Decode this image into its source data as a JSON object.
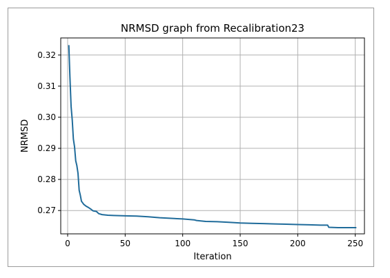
{
  "chart_data": {
    "type": "line",
    "title": "NRMSD graph from Recalibration23",
    "xlabel": "Iteration",
    "ylabel": "NRMSD",
    "xlim": [
      -6,
      258
    ],
    "ylim": [
      0.2625,
      0.3255
    ],
    "grid": true,
    "x_ticks": [
      0,
      50,
      100,
      150,
      200,
      250
    ],
    "y_ticks": [
      0.27,
      0.28,
      0.29,
      0.3,
      0.31,
      0.32
    ],
    "x_tick_labels": [
      "0",
      "50",
      "100",
      "150",
      "200",
      "250"
    ],
    "y_tick_labels": [
      "0.27",
      "0.28",
      "0.29",
      "0.30",
      "0.31",
      "0.32"
    ],
    "series": [
      {
        "color": "#1f6b9a",
        "x": [
          1,
          2,
          3,
          4,
          5,
          6,
          7,
          8,
          9,
          10,
          11,
          12,
          14,
          16,
          18,
          20,
          22,
          25,
          27,
          30,
          35,
          40,
          50,
          60,
          70,
          80,
          90,
          100,
          110,
          112,
          120,
          130,
          140,
          150,
          160,
          170,
          180,
          190,
          200,
          210,
          220,
          226,
          227,
          235,
          245,
          251
        ],
        "y": [
          0.3232,
          0.313,
          0.3035,
          0.299,
          0.293,
          0.2905,
          0.286,
          0.2845,
          0.282,
          0.2765,
          0.275,
          0.273,
          0.272,
          0.2714,
          0.271,
          0.2705,
          0.2699,
          0.2697,
          0.269,
          0.2687,
          0.2685,
          0.2684,
          0.2683,
          0.2682,
          0.268,
          0.2677,
          0.2675,
          0.2673,
          0.267,
          0.2668,
          0.2665,
          0.2664,
          0.2662,
          0.266,
          0.2659,
          0.2658,
          0.2657,
          0.2656,
          0.2655,
          0.2654,
          0.2653,
          0.2653,
          0.2646,
          0.2645,
          0.2645,
          0.2645
        ]
      }
    ]
  }
}
